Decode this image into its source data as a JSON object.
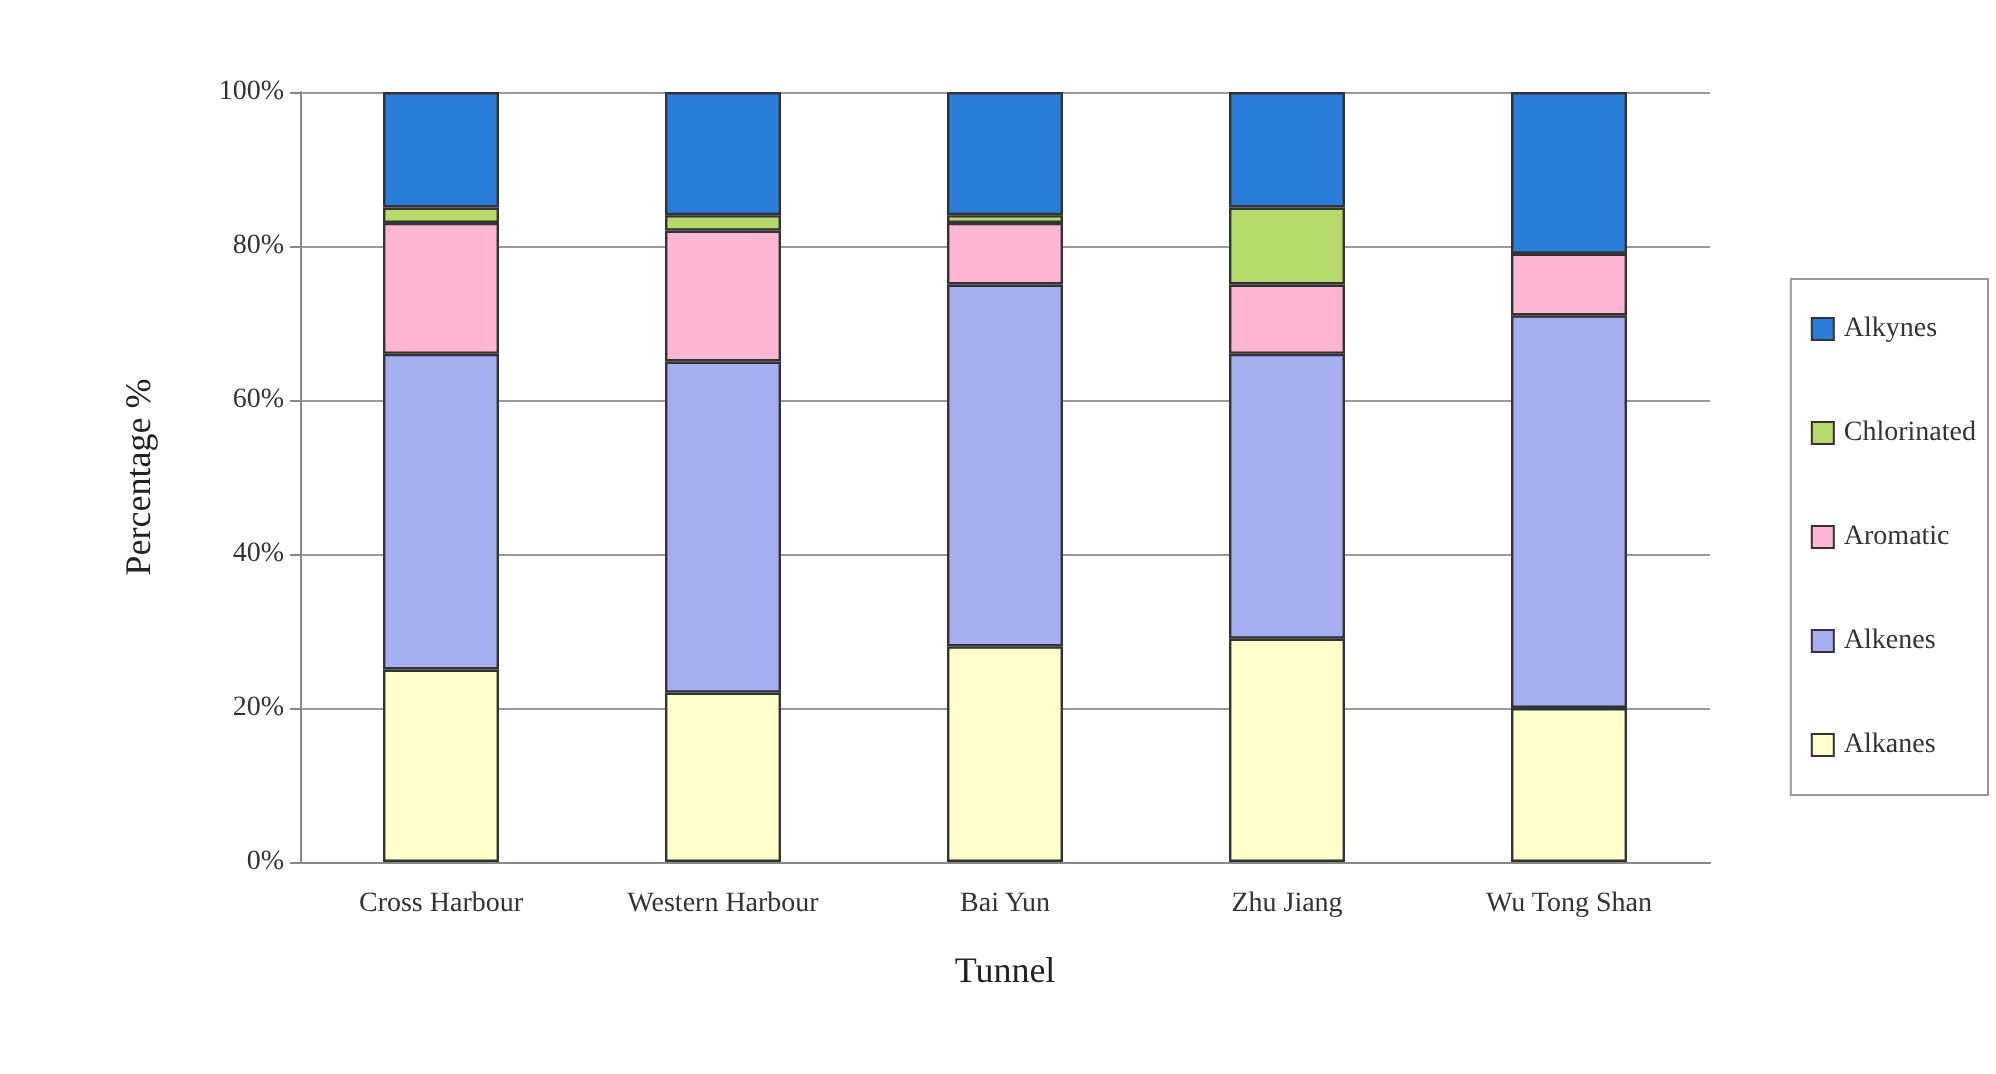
{
  "chart_data": {
    "type": "bar",
    "stacked": true,
    "xlabel": "Tunnel",
    "ylabel": "Percentage %",
    "categories": [
      "Cross Harbour",
      "Western Harbour",
      "Bai Yun",
      "Zhu Jiang",
      "Wu Tong Shan"
    ],
    "series": [
      {
        "name": "Alkanes",
        "color": "#ffffcc",
        "values": [
          25,
          22,
          28,
          29,
          20
        ]
      },
      {
        "name": "Alkenes",
        "color": "#a6aef0",
        "values": [
          41,
          43,
          47,
          37,
          51
        ]
      },
      {
        "name": "Aromatic",
        "color": "#ffb6d2",
        "values": [
          17,
          17,
          8,
          9,
          8
        ]
      },
      {
        "name": "Chlorinated",
        "color": "#b5d96b",
        "values": [
          2,
          2,
          1,
          10,
          0
        ]
      },
      {
        "name": "Alkynes",
        "color": "#2a7dd8",
        "values": [
          15,
          16,
          16,
          15,
          21
        ]
      }
    ],
    "ylim": [
      0,
      100
    ],
    "yticks": [
      {
        "value": 0,
        "label": "0%"
      },
      {
        "value": 20,
        "label": "20%"
      },
      {
        "value": 40,
        "label": "40%"
      },
      {
        "value": 60,
        "label": "60%"
      },
      {
        "value": 80,
        "label": "80%"
      },
      {
        "value": 100,
        "label": "100%"
      }
    ],
    "grid": "y",
    "legend": "right"
  }
}
